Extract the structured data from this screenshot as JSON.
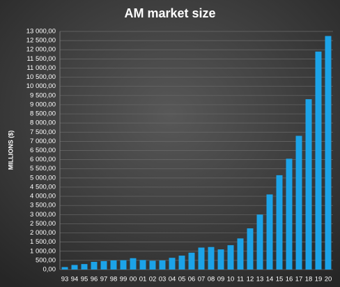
{
  "chart_data": {
    "type": "bar",
    "title": "AM market size",
    "y_label": "MILLIONS ($)",
    "categories": [
      "93",
      "94",
      "95",
      "96",
      "97",
      "98",
      "99",
      "00",
      "01",
      "02",
      "03",
      "04",
      "05",
      "06",
      "07",
      "08",
      "09",
      "10",
      "11",
      "12",
      "13",
      "14",
      "15",
      "16",
      "17",
      "18",
      "19",
      "20"
    ],
    "values": [
      135,
      250,
      300,
      420,
      460,
      500,
      510,
      620,
      520,
      480,
      500,
      640,
      760,
      920,
      1200,
      1230,
      1100,
      1330,
      1700,
      2250,
      3000,
      4100,
      5150,
      6050,
      7300,
      9300,
      11900,
      12750
    ],
    "color": "#1ca3e8",
    "ylim": [
      0,
      13000
    ],
    "yticks": [
      {
        "value": 0,
        "label": "0,00"
      },
      {
        "value": 500,
        "label": "500,00"
      },
      {
        "value": 1000,
        "label": "1 000,00"
      },
      {
        "value": 1500,
        "label": "1 500,00"
      },
      {
        "value": 2000,
        "label": "2 000,00"
      },
      {
        "value": 2500,
        "label": "2 500,00"
      },
      {
        "value": 3000,
        "label": "3 000,00"
      },
      {
        "value": 3500,
        "label": "3 500,00"
      },
      {
        "value": 4000,
        "label": "4 000,00"
      },
      {
        "value": 4500,
        "label": "4 500,00"
      },
      {
        "value": 5000,
        "label": "5 000,00"
      },
      {
        "value": 5500,
        "label": "5 500,00"
      },
      {
        "value": 6000,
        "label": "6 000,00"
      },
      {
        "value": 6500,
        "label": "6 500,00"
      },
      {
        "value": 7000,
        "label": "7 000,00"
      },
      {
        "value": 7500,
        "label": "7 500,00"
      },
      {
        "value": 8000,
        "label": "8 000,00"
      },
      {
        "value": 8500,
        "label": "8 500,00"
      },
      {
        "value": 9000,
        "label": "9 000,00"
      },
      {
        "value": 9500,
        "label": "9 500,00"
      },
      {
        "value": 10000,
        "label": "10 000,00"
      },
      {
        "value": 10500,
        "label": "10 500,00"
      },
      {
        "value": 11000,
        "label": "11 000,00"
      },
      {
        "value": 11500,
        "label": "11 500,00"
      },
      {
        "value": 12000,
        "label": "12 000,00"
      },
      {
        "value": 12500,
        "label": "12 500,00"
      },
      {
        "value": 13000,
        "label": "13 000,00"
      }
    ],
    "grid": true
  }
}
